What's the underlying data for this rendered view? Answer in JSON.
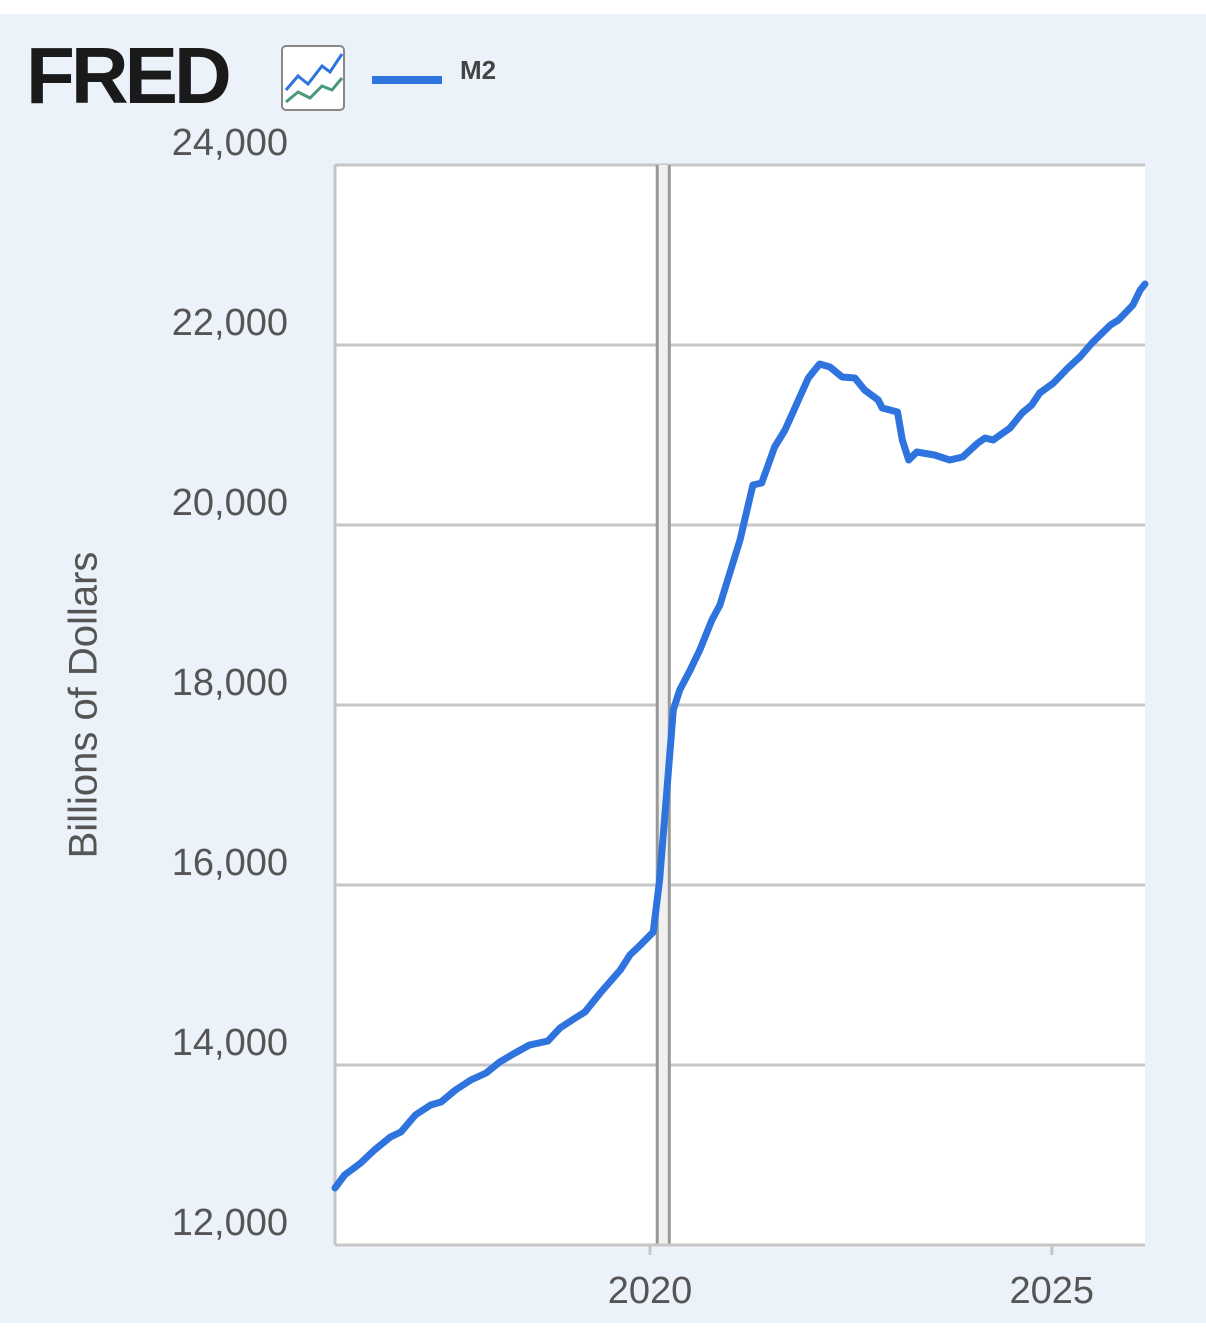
{
  "chart_data": {
    "type": "line",
    "logo": "FRED",
    "ylabel": "Billions of Dollars",
    "xlim": [
      2016.08,
      2026.16
    ],
    "xticks": [
      2020,
      2025
    ],
    "ylim": [
      12000,
      24000
    ],
    "yticks": [
      {
        "value": 12000,
        "label": "12,000"
      },
      {
        "value": 14000,
        "label": "14,000"
      },
      {
        "value": 16000,
        "label": "16,000"
      },
      {
        "value": 18000,
        "label": "18,000"
      },
      {
        "value": 20000,
        "label": "20,000"
      },
      {
        "value": 22000,
        "label": "22,000"
      },
      {
        "value": 24000,
        "label": "24,000"
      }
    ],
    "grid": true,
    "recession": [
      2020.09,
      2020.24
    ],
    "x": [
      2016.08,
      2016.2,
      2016.4,
      2016.57,
      2016.77,
      2016.9,
      2017.08,
      2017.27,
      2017.4,
      2017.58,
      2017.77,
      2017.96,
      2018.13,
      2018.32,
      2018.5,
      2018.73,
      2018.88,
      2019.07,
      2019.19,
      2019.38,
      2019.63,
      2019.75,
      2019.88,
      2020.04,
      2020.12,
      2020.21,
      2020.29,
      2020.37,
      2020.5,
      2020.62,
      2020.77,
      2020.87,
      2021.12,
      2021.28,
      2021.39,
      2021.55,
      2021.68,
      2021.97,
      2022.11,
      2022.24,
      2022.39,
      2022.55,
      2022.67,
      2022.84,
      2022.89,
      2023.08,
      2023.14,
      2023.22,
      2023.32,
      2023.54,
      2023.73,
      2023.89,
      2024.08,
      2024.17,
      2024.27,
      2024.48,
      2024.63,
      2024.75,
      2024.85,
      2025.02,
      2025.2,
      2025.35,
      2025.5,
      2025.73,
      2025.83,
      2026.01,
      2026.1,
      2026.16
    ],
    "series": [
      {
        "name": "M2",
        "color": "#2f74de",
        "values": [
          12633,
          12778,
          12911,
          13056,
          13200,
          13256,
          13444,
          13556,
          13589,
          13722,
          13833,
          13911,
          14033,
          14133,
          14222,
          14267,
          14411,
          14522,
          14589,
          14800,
          15056,
          15222,
          15333,
          15478,
          16056,
          17056,
          17944,
          18167,
          18389,
          18611,
          18944,
          19111,
          19833,
          20444,
          20467,
          20867,
          21056,
          21633,
          21789,
          21756,
          21644,
          21633,
          21500,
          21389,
          21300,
          21256,
          20944,
          20722,
          20811,
          20778,
          20722,
          20756,
          20911,
          20967,
          20944,
          21078,
          21244,
          21333,
          21467,
          21578,
          21744,
          21867,
          22022,
          22222,
          22278,
          22444,
          22611,
          22678
        ]
      }
    ]
  }
}
